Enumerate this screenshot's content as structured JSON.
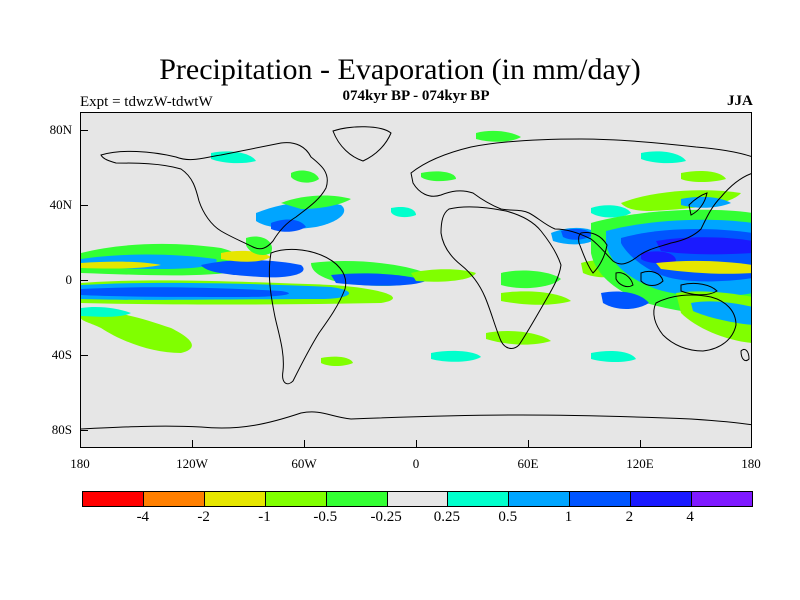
{
  "title": "Precipitation - Evaporation (in mm/day)",
  "subtitle": "074kyr BP - 074kyr BP",
  "experiment": "Expt = tdwzW-tdwtW",
  "season": "JJA",
  "lat_labels": [
    "80N",
    "40N",
    "0",
    "40S",
    "80S"
  ],
  "lon_labels": [
    "180",
    "120W",
    "60W",
    "0",
    "60E",
    "120E",
    "180"
  ],
  "colorbar": {
    "colors": [
      "#ff0000",
      "#ff7f00",
      "#e6e600",
      "#80ff00",
      "#33ff33",
      "#e6e6e6",
      "#00ffcc",
      "#00a5ff",
      "#0055ff",
      "#1a1aff",
      "#7f1aff"
    ],
    "labels": [
      "-4",
      "-2",
      "-1",
      "-0.5",
      "-0.25",
      "0.25",
      "0.5",
      "1",
      "2",
      "4"
    ]
  },
  "palette": {
    "background": "#e6e6e6",
    "green": "#33ff33",
    "lightgreen": "#80ff00",
    "yellow": "#e6e600",
    "cyan": "#00ffcc",
    "lightblue": "#00a5ff",
    "blue": "#0055ff",
    "darkblue": "#1a1aff",
    "purple": "#7f1aff"
  }
}
